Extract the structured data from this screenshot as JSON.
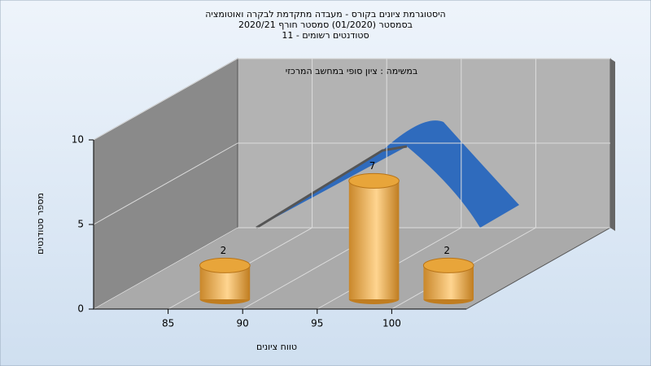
{
  "chart_data": {
    "type": "histogram3d",
    "title": [
      "היסטוגרמת ציונים בקורס - מעבדה מתקדמת לבקרה ואוטומציה",
      "בסמסטר  (01/2020)  סמסטר חורף  2020/21",
      "סטודנטים רשומים - 11"
    ],
    "annotation": "במשימה : ציון סופי במחשב המרכזי",
    "x_label": "טווח ציונים",
    "y_label": "מספר סטודנטים",
    "bins": [
      85,
      90,
      95,
      100,
      105
    ],
    "values": [
      2,
      0,
      7,
      2
    ],
    "color": "#e8a53a",
    "xlim": [
      80,
      105
    ],
    "xticks": [
      85,
      90,
      95,
      100
    ],
    "ylim": [
      0,
      10
    ],
    "yticks": [
      0,
      5,
      10
    ],
    "grid": true
  }
}
